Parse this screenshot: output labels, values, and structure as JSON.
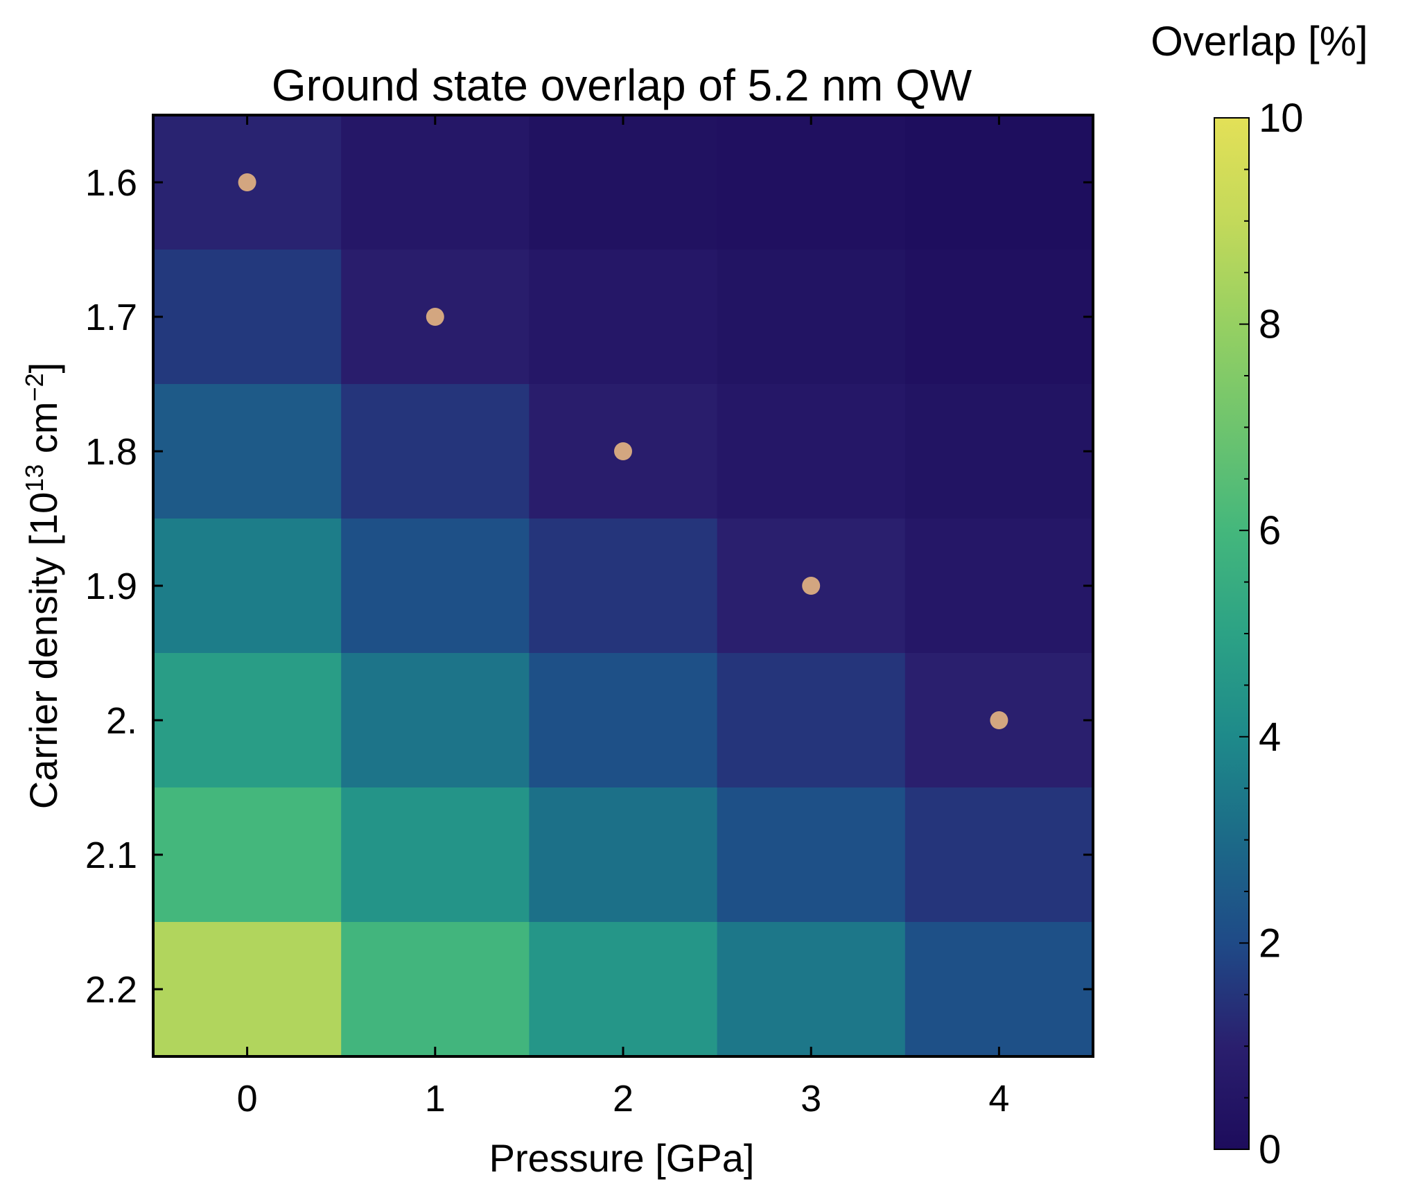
{
  "chart_data": {
    "type": "heatmap",
    "title": "Ground state overlap of 5.2 nm QW",
    "xlabel": "Pressure [GPa]",
    "ylabel": {
      "prefix": "Carrier density [10",
      "exp1": "13",
      "mid": " cm",
      "exp2": "−2",
      "suffix": "]"
    },
    "x_categories": [
      0,
      1,
      2,
      3,
      4
    ],
    "x_tick_labels": [
      "0",
      "1",
      "2",
      "3",
      "4"
    ],
    "y_categories": [
      1.6,
      1.7,
      1.8,
      1.9,
      2.0,
      2.1,
      2.2
    ],
    "y_tick_labels": [
      "1.6",
      "1.7",
      "1.8",
      "1.9",
      "2.",
      "2.1",
      "2.2"
    ],
    "values": [
      [
        1.1,
        0.6,
        0.3,
        0.2,
        0.1
      ],
      [
        1.6,
        0.9,
        0.6,
        0.4,
        0.2
      ],
      [
        2.5,
        1.5,
        0.9,
        0.6,
        0.4
      ],
      [
        3.6,
        2.2,
        1.5,
        1.0,
        0.6
      ],
      [
        4.8,
        3.3,
        2.2,
        1.5,
        1.0
      ],
      [
        6.0,
        4.4,
        3.2,
        2.2,
        1.5
      ],
      [
        8.6,
        5.9,
        4.5,
        3.4,
        2.2
      ]
    ],
    "markers": [
      {
        "x": 0,
        "y": 1.6
      },
      {
        "x": 1,
        "y": 1.7
      },
      {
        "x": 2,
        "y": 1.8
      },
      {
        "x": 3,
        "y": 1.9
      },
      {
        "x": 4,
        "y": 2.0
      }
    ],
    "marker_color": "#d3a680",
    "colorbar": {
      "label": "Overlap [%]",
      "range": [
        0,
        10
      ],
      "tick_values": [
        0,
        2,
        4,
        6,
        8,
        10
      ],
      "tick_labels": [
        "0",
        "2",
        "4",
        "6",
        "8",
        "10"
      ],
      "colormap": "viridis"
    }
  }
}
